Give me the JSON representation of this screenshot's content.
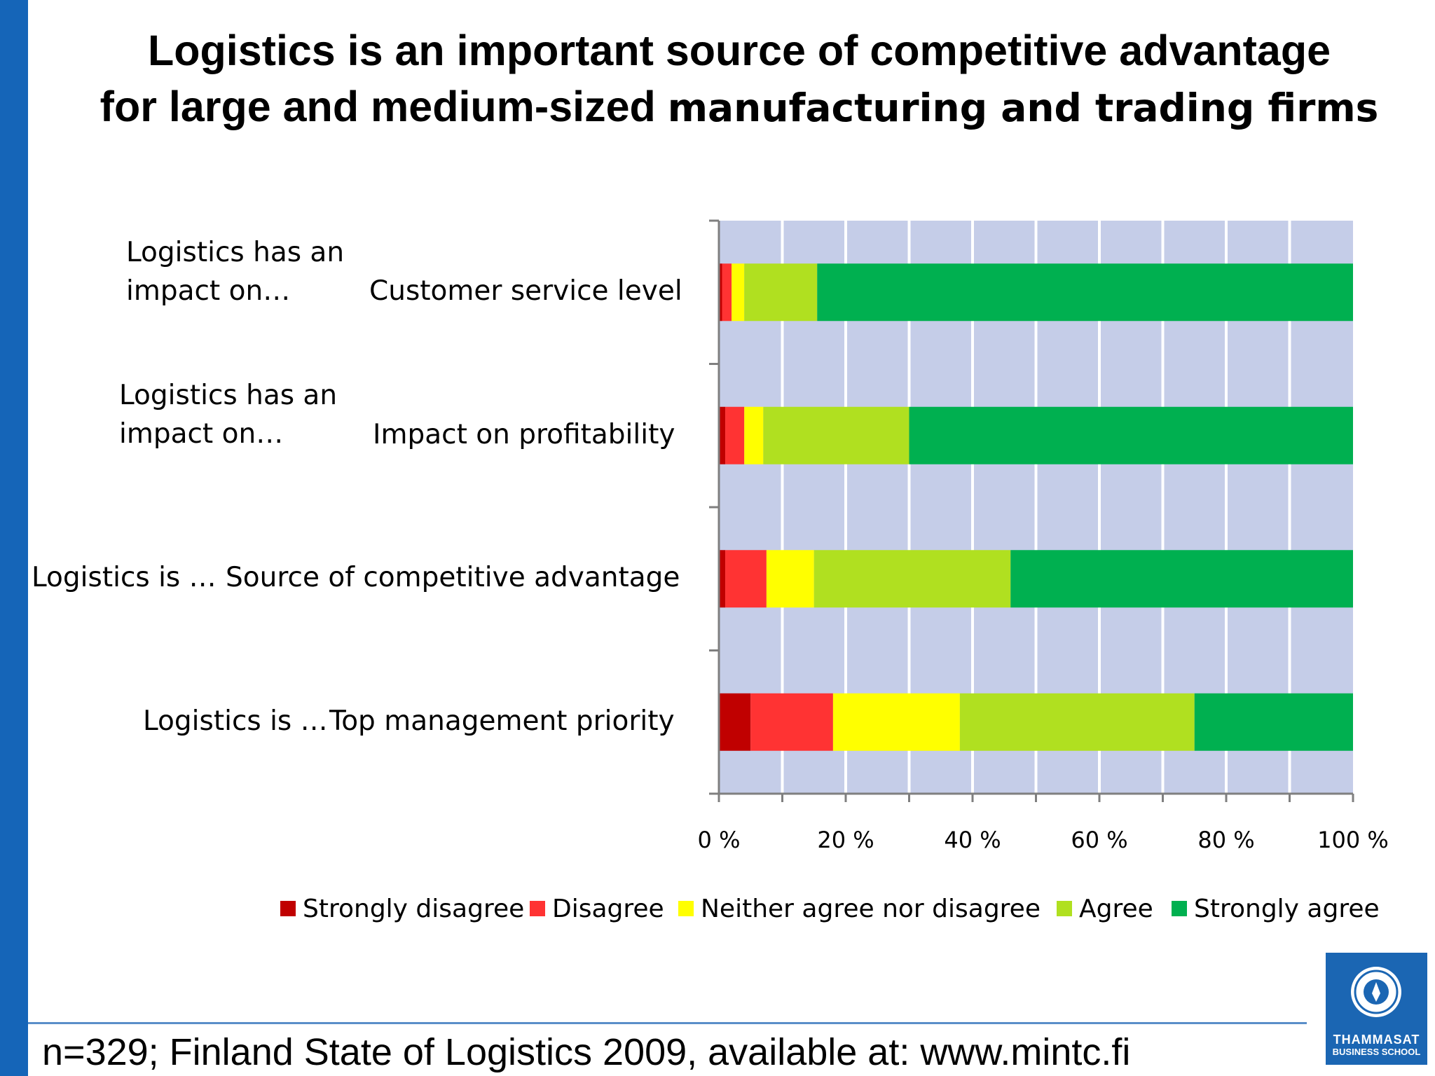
{
  "title": {
    "line1": "Logistics is an important source of competitive advantage",
    "line2_a": "for large and medium-sized",
    "line2_b": "manufacturing and trading firms"
  },
  "row_labels": [
    {
      "prefix_line1": "Logistics has an",
      "prefix_line2": "impact on…",
      "category": "Customer service level"
    },
    {
      "prefix_line1": "Logistics has an",
      "prefix_line2": "impact on…",
      "category": "Impact on profitability"
    },
    {
      "prefix_line1": "Logistics is …",
      "prefix_line2": "",
      "category": "Source of competitive advantage"
    },
    {
      "prefix_line1": "Logistics is …",
      "prefix_line2": "",
      "category": "Top management priority"
    }
  ],
  "chart_data": {
    "type": "bar",
    "orientation": "horizontal",
    "stacked": "percent",
    "categories": [
      "Customer service level",
      "Impact on profitability",
      "Source of competitive advantage",
      "Top management priority"
    ],
    "series": [
      {
        "name": "Strongly disagree",
        "color": "#c00000",
        "values": [
          0.5,
          1,
          1,
          5
        ]
      },
      {
        "name": "Disagree",
        "color": "#ff3333",
        "values": [
          1.5,
          3,
          6.5,
          13
        ]
      },
      {
        "name": "Neither agree nor disagree",
        "color": "#ffff00",
        "values": [
          2,
          3,
          7.5,
          20
        ]
      },
      {
        "name": "Agree",
        "color": "#b0e020",
        "values": [
          11.5,
          23,
          31,
          37
        ]
      },
      {
        "name": "Strongly agree",
        "color": "#00b050",
        "values": [
          84.5,
          70,
          54,
          25
        ]
      }
    ],
    "x_ticks": [
      "0 %",
      "20 %",
      "40 %",
      "60 %",
      "80 %",
      "100 %"
    ],
    "xlim": [
      0,
      100
    ],
    "grid": true,
    "legend_position": "bottom",
    "plot_background": "#c5cde8"
  },
  "footer": "n=329; Finland State of Logistics 2009, available at: www.mintc.fi",
  "logo": {
    "line1": "THAMMASAT",
    "line2": "BUSINESS SCHOOL"
  }
}
